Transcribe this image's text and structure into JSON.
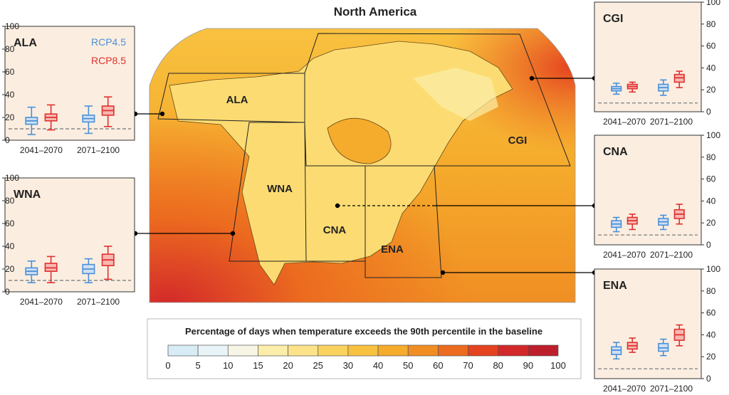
{
  "title": "North America",
  "legend_bar": {
    "title": "Percentage of days when temperature exceeds the 90th percentile in the baseline",
    "ticks": [
      "0",
      "5",
      "10",
      "15",
      "20",
      "25",
      "30",
      "40",
      "50",
      "60",
      "70",
      "80",
      "90",
      "100"
    ],
    "colors": [
      "#d7ecf5",
      "#e8f4f8",
      "#f7f6e6",
      "#fbeeaa",
      "#fce38a",
      "#fad35f",
      "#f8c240",
      "#f5ab2c",
      "#f08e23",
      "#ec6b1f",
      "#e5421f",
      "#d3282a",
      "#bd1e2c"
    ]
  },
  "map_labels": [
    "ALA",
    "CGI",
    "WNA",
    "CNA",
    "ENA"
  ],
  "panel_legend": {
    "rcp45": "RCP4.5",
    "rcp85": "RCP8.5"
  },
  "colors": {
    "rcp45": "#4a90d9",
    "rcp85": "#e03030",
    "panel_bg": "#fbeee0",
    "baseline": "#888888"
  },
  "chart_data": [
    {
      "type": "boxplot",
      "region": "ALA",
      "categories": [
        "2041–2070",
        "2071–2100"
      ],
      "ylim": [
        0,
        100
      ],
      "yticks": [
        "0",
        "20",
        "40",
        "60",
        "80",
        "100"
      ],
      "baseline": 10,
      "series": [
        {
          "name": "RCP4.5",
          "boxes": [
            {
              "min": 5,
              "q1": 14,
              "median": 17,
              "q3": 20,
              "max": 29
            },
            {
              "min": 6,
              "q1": 16,
              "median": 19,
              "q3": 22,
              "max": 30
            }
          ]
        },
        {
          "name": "RCP8.5",
          "boxes": [
            {
              "min": 9,
              "q1": 17,
              "median": 20,
              "q3": 23,
              "max": 31
            },
            {
              "min": 12,
              "q1": 22,
              "median": 26,
              "q3": 30,
              "max": 38
            }
          ]
        }
      ]
    },
    {
      "type": "boxplot",
      "region": "WNA",
      "categories": [
        "2041–2070",
        "2071–2100"
      ],
      "ylim": [
        0,
        100
      ],
      "yticks": [
        "0",
        "20",
        "40",
        "60",
        "80",
        "100"
      ],
      "baseline": 10,
      "series": [
        {
          "name": "RCP4.5",
          "boxes": [
            {
              "min": 8,
              "q1": 15,
              "median": 18,
              "q3": 21,
              "max": 27
            },
            {
              "min": 8,
              "q1": 16,
              "median": 20,
              "q3": 24,
              "max": 29
            }
          ]
        },
        {
          "name": "RCP8.5",
          "boxes": [
            {
              "min": 8,
              "q1": 18,
              "median": 21,
              "q3": 25,
              "max": 31
            },
            {
              "min": 11,
              "q1": 23,
              "median": 28,
              "q3": 33,
              "max": 40
            }
          ]
        }
      ]
    },
    {
      "type": "boxplot",
      "region": "CGI",
      "categories": [
        "2041–2070",
        "2071–2100"
      ],
      "ylim": [
        0,
        100
      ],
      "yticks": [
        "0",
        "20",
        "40",
        "60",
        "80",
        "100"
      ],
      "baseline": 8,
      "series": [
        {
          "name": "RCP4.5",
          "boxes": [
            {
              "min": 16,
              "q1": 19,
              "median": 21,
              "q3": 23,
              "max": 26
            },
            {
              "min": 15,
              "q1": 19,
              "median": 22,
              "q3": 25,
              "max": 29
            }
          ]
        },
        {
          "name": "RCP8.5",
          "boxes": [
            {
              "min": 18,
              "q1": 21,
              "median": 23,
              "q3": 25,
              "max": 27
            },
            {
              "min": 22,
              "q1": 27,
              "median": 31,
              "q3": 34,
              "max": 37
            }
          ]
        }
      ]
    },
    {
      "type": "boxplot",
      "region": "CNA",
      "categories": [
        "2041–2070",
        "2071–2100"
      ],
      "ylim": [
        0,
        100
      ],
      "yticks": [
        "0",
        "20",
        "40",
        "60",
        "80",
        "100"
      ],
      "baseline": 9,
      "series": [
        {
          "name": "RCP4.5",
          "boxes": [
            {
              "min": 12,
              "q1": 16,
              "median": 19,
              "q3": 22,
              "max": 25
            },
            {
              "min": 14,
              "q1": 18,
              "median": 21,
              "q3": 24,
              "max": 27
            }
          ]
        },
        {
          "name": "RCP8.5",
          "boxes": [
            {
              "min": 14,
              "q1": 19,
              "median": 22,
              "q3": 25,
              "max": 28
            },
            {
              "min": 19,
              "q1": 24,
              "median": 28,
              "q3": 32,
              "max": 37
            }
          ]
        }
      ]
    },
    {
      "type": "boxplot",
      "region": "ENA",
      "categories": [
        "2041–2070",
        "2071–2100"
      ],
      "ylim": [
        0,
        100
      ],
      "yticks": [
        "0",
        "20",
        "40",
        "60",
        "80",
        "100"
      ],
      "baseline": 9,
      "series": [
        {
          "name": "RCP4.5",
          "boxes": [
            {
              "min": 18,
              "q1": 22,
              "median": 26,
              "q3": 29,
              "max": 33
            },
            {
              "min": 21,
              "q1": 25,
              "median": 28,
              "q3": 32,
              "max": 36
            }
          ]
        },
        {
          "name": "RCP8.5",
          "boxes": [
            {
              "min": 24,
              "q1": 27,
              "median": 30,
              "q3": 33,
              "max": 37
            },
            {
              "min": 30,
              "q1": 35,
              "median": 40,
              "q3": 45,
              "max": 49
            }
          ]
        }
      ]
    }
  ]
}
